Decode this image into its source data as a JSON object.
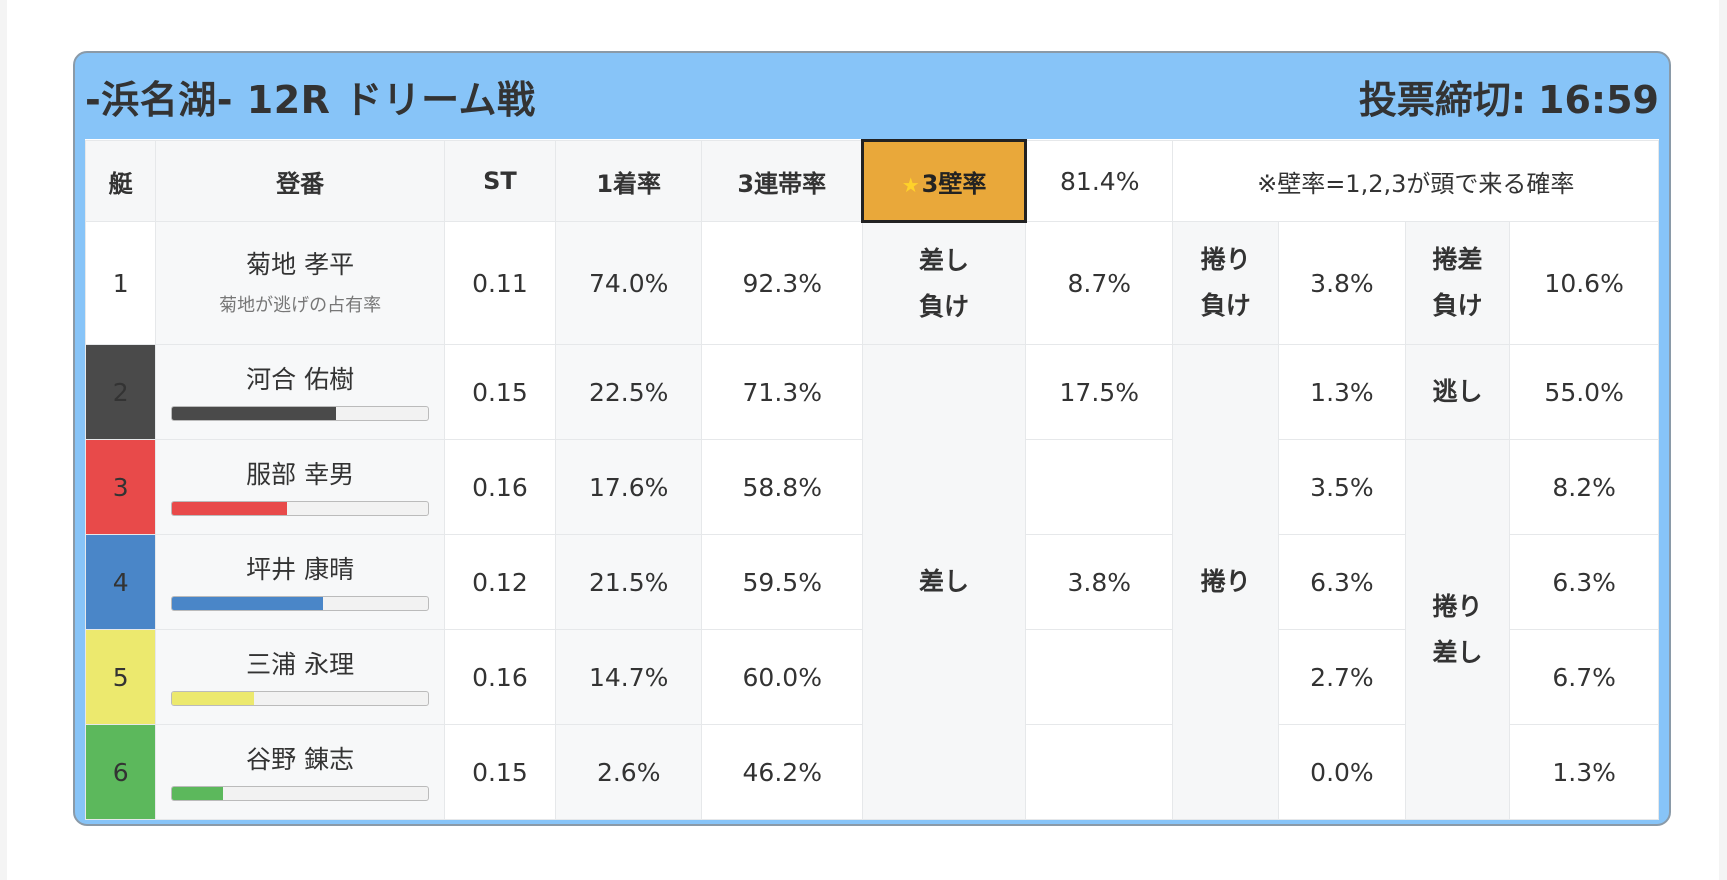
{
  "header": {
    "title": "-浜名湖- 12R ドリーム戦",
    "deadline_label": "投票締切:",
    "deadline_time": "16:59"
  },
  "table_head": {
    "boat": "艇",
    "registry": "登番",
    "st": "ST",
    "first_rate": "1着率",
    "top3_rate": "3連帯率",
    "wall3_label": "3壁率",
    "wall3_value": "81.4%",
    "note": "※壁率=1,2,3が頭で来る確率"
  },
  "labels": {
    "sashi_make": [
      "差し",
      "負け"
    ],
    "makuri_make": [
      "捲り",
      "負け"
    ],
    "makurisashi_make": [
      "捲差",
      "負け"
    ],
    "nige": "逃し",
    "sashi": "差し",
    "makuri": "捲り",
    "makuri_sashi": [
      "捲り",
      "差し"
    ]
  },
  "colors": {
    "lane2": "#4a4a4a",
    "lane3": "#e84a4a",
    "lane4": "#4a86c8",
    "lane5": "#ece96e",
    "lane6": "#5cb85c",
    "wall_accent": "#e9a83a",
    "card_bg": "#87c4f8"
  },
  "racers": [
    {
      "lane": "1",
      "name": "菊地 孝平",
      "note": "菊地が逃げの占有率",
      "st": "0.11",
      "first": "74.0%",
      "top3": "92.3%",
      "sashi": "8.7%",
      "makuri": "3.8%",
      "makurisashi": "10.6%"
    },
    {
      "lane": "2",
      "name": "河合 佑樹",
      "bar": 0.64,
      "st": "0.15",
      "first": "22.5%",
      "top3": "71.3%",
      "sashi": "17.5%",
      "makuri": "1.3%",
      "makurisashi": "55.0%"
    },
    {
      "lane": "3",
      "name": "服部 幸男",
      "bar": 0.45,
      "st": "0.16",
      "first": "17.6%",
      "top3": "58.8%",
      "sashi": "",
      "makuri": "3.5%",
      "makurisashi": "8.2%"
    },
    {
      "lane": "4",
      "name": "坪井 康晴",
      "bar": 0.59,
      "st": "0.12",
      "first": "21.5%",
      "top3": "59.5%",
      "sashi": "3.8%",
      "makuri": "6.3%",
      "makurisashi": "6.3%"
    },
    {
      "lane": "5",
      "name": "三浦 永理",
      "bar": 0.32,
      "st": "0.16",
      "first": "14.7%",
      "top3": "60.0%",
      "sashi": "",
      "makuri": "2.7%",
      "makurisashi": "6.7%"
    },
    {
      "lane": "6",
      "name": "谷野 錬志",
      "bar": 0.2,
      "st": "0.15",
      "first": "2.6%",
      "top3": "46.2%",
      "sashi": "",
      "makuri": "0.0%",
      "makurisashi": "1.3%"
    }
  ]
}
